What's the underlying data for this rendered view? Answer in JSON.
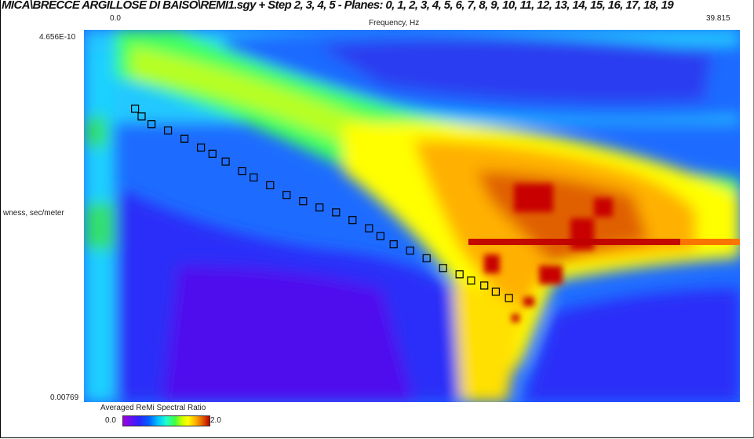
{
  "title": "MICA\\BRECCE ARGILLOSE DI BAISO\\REMI1.sgy + Step 2, 3, 4, 5 - Planes: 0, 1, 2, 3, 4, 5, 6, 7, 8, 9, 10, 11, 12, 13, 14, 15, 16, 17, 18, 19",
  "chart_data": {
    "type": "heatmap",
    "xlabel": "Frequency, Hz",
    "ylabel": "wness, sec/meter",
    "xlim": [
      0.0,
      39.815
    ],
    "x_tick_labels": [
      "0.0",
      "39.815"
    ],
    "ylim": [
      4.656e-10,
      0.00769
    ],
    "y_tick_labels": [
      "4.656E-10",
      "0.00769"
    ],
    "colorbar": {
      "title": "Averaged ReMi Spectral Ratio",
      "min_label": "0.0",
      "max_label": "2.0",
      "range": [
        0.0,
        2.0
      ],
      "colors": [
        "#a000e0",
        "#3020ff",
        "#0060ff",
        "#00c0ff",
        "#20ffd0",
        "#40ff40",
        "#c8ff00",
        "#ffff00",
        "#ffb000",
        "#e06000",
        "#c00000"
      ]
    },
    "picked_points": [
      {
        "x": 3.1,
        "y": 0.00163
      },
      {
        "x": 3.5,
        "y": 0.00179
      },
      {
        "x": 4.1,
        "y": 0.00195
      },
      {
        "x": 5.1,
        "y": 0.00208
      },
      {
        "x": 6.1,
        "y": 0.00225
      },
      {
        "x": 7.1,
        "y": 0.00243
      },
      {
        "x": 7.8,
        "y": 0.00256
      },
      {
        "x": 8.6,
        "y": 0.00272
      },
      {
        "x": 9.6,
        "y": 0.00292
      },
      {
        "x": 10.3,
        "y": 0.00305
      },
      {
        "x": 11.3,
        "y": 0.00321
      },
      {
        "x": 12.3,
        "y": 0.00341
      },
      {
        "x": 13.3,
        "y": 0.00354
      },
      {
        "x": 14.3,
        "y": 0.00367
      },
      {
        "x": 15.3,
        "y": 0.00377
      },
      {
        "x": 16.3,
        "y": 0.00393
      },
      {
        "x": 17.3,
        "y": 0.0041
      },
      {
        "x": 18.0,
        "y": 0.00426
      },
      {
        "x": 18.8,
        "y": 0.00443
      },
      {
        "x": 19.8,
        "y": 0.00456
      },
      {
        "x": 20.8,
        "y": 0.00472
      },
      {
        "x": 21.8,
        "y": 0.00492
      },
      {
        "x": 22.8,
        "y": 0.00505
      },
      {
        "x": 23.5,
        "y": 0.00518
      },
      {
        "x": 24.3,
        "y": 0.00528
      },
      {
        "x": 25.0,
        "y": 0.00541
      },
      {
        "x": 25.8,
        "y": 0.00554
      }
    ]
  }
}
